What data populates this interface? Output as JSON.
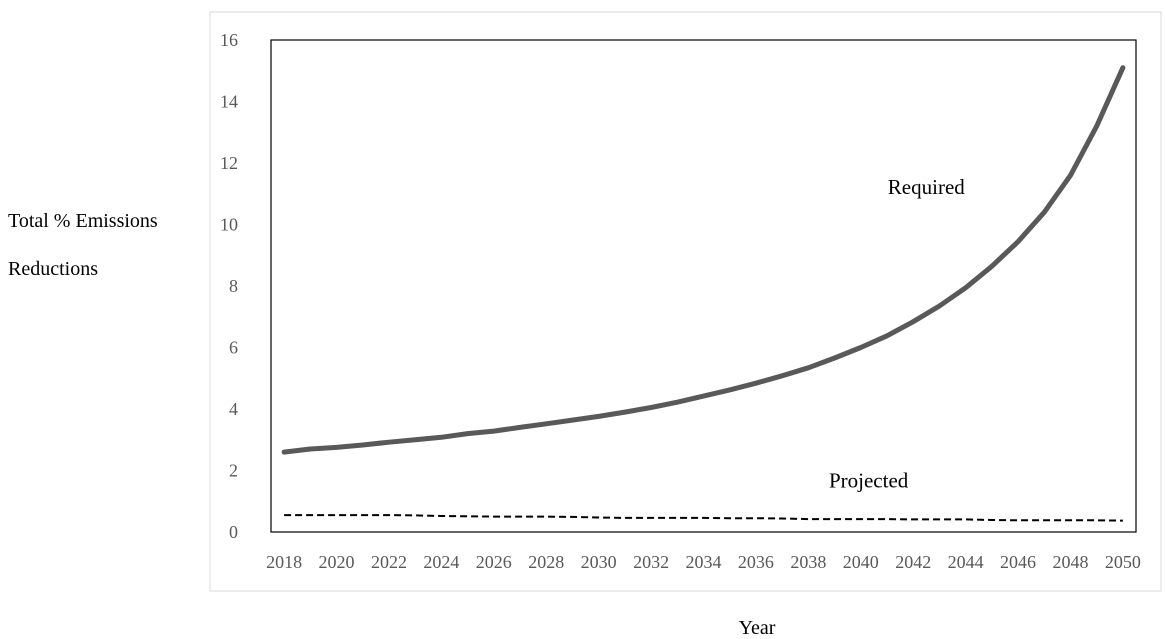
{
  "chart_data": {
    "type": "line",
    "title": "",
    "xlabel": "Year",
    "ylabel_lines": [
      "Total % Emissions",
      "Reductions"
    ],
    "x": [
      2018,
      2019,
      2020,
      2021,
      2022,
      2023,
      2024,
      2025,
      2026,
      2027,
      2028,
      2029,
      2030,
      2031,
      2032,
      2033,
      2034,
      2035,
      2036,
      2037,
      2038,
      2039,
      2040,
      2041,
      2042,
      2043,
      2044,
      2045,
      2046,
      2047,
      2048,
      2049,
      2050
    ],
    "xticks": [
      "2018",
      "2020",
      "2022",
      "2024",
      "2026",
      "2028",
      "2030",
      "2032",
      "2034",
      "2036",
      "2038",
      "2040",
      "2042",
      "2044",
      "2046",
      "2048",
      "2050"
    ],
    "ylim": [
      0,
      16
    ],
    "yticks": [
      "0",
      "2",
      "4",
      "6",
      "8",
      "10",
      "12",
      "14",
      "16"
    ],
    "series": [
      {
        "name": "Required",
        "color": "#595959",
        "style": "solid",
        "values": [
          2.6,
          2.7,
          2.75,
          2.83,
          2.92,
          3.0,
          3.08,
          3.2,
          3.28,
          3.4,
          3.52,
          3.64,
          3.76,
          3.9,
          4.05,
          4.22,
          4.42,
          4.62,
          4.84,
          5.08,
          5.34,
          5.66,
          6.0,
          6.38,
          6.84,
          7.35,
          7.94,
          8.64,
          9.44,
          10.4,
          11.6,
          13.2,
          15.1
        ]
      },
      {
        "name": "Projected",
        "color": "#000000",
        "style": "dashed",
        "values": [
          0.55,
          0.55,
          0.55,
          0.55,
          0.55,
          0.54,
          0.52,
          0.51,
          0.5,
          0.5,
          0.5,
          0.49,
          0.47,
          0.46,
          0.46,
          0.46,
          0.46,
          0.45,
          0.45,
          0.44,
          0.42,
          0.42,
          0.42,
          0.42,
          0.41,
          0.41,
          0.41,
          0.39,
          0.38,
          0.38,
          0.38,
          0.38,
          0.37
        ]
      }
    ],
    "annotations": [
      {
        "text": "Required",
        "x": 2042.5,
        "y": 11.0
      },
      {
        "text": "Projected",
        "x": 2040.3,
        "y": 1.45
      }
    ],
    "grid": false,
    "legend": "none"
  }
}
